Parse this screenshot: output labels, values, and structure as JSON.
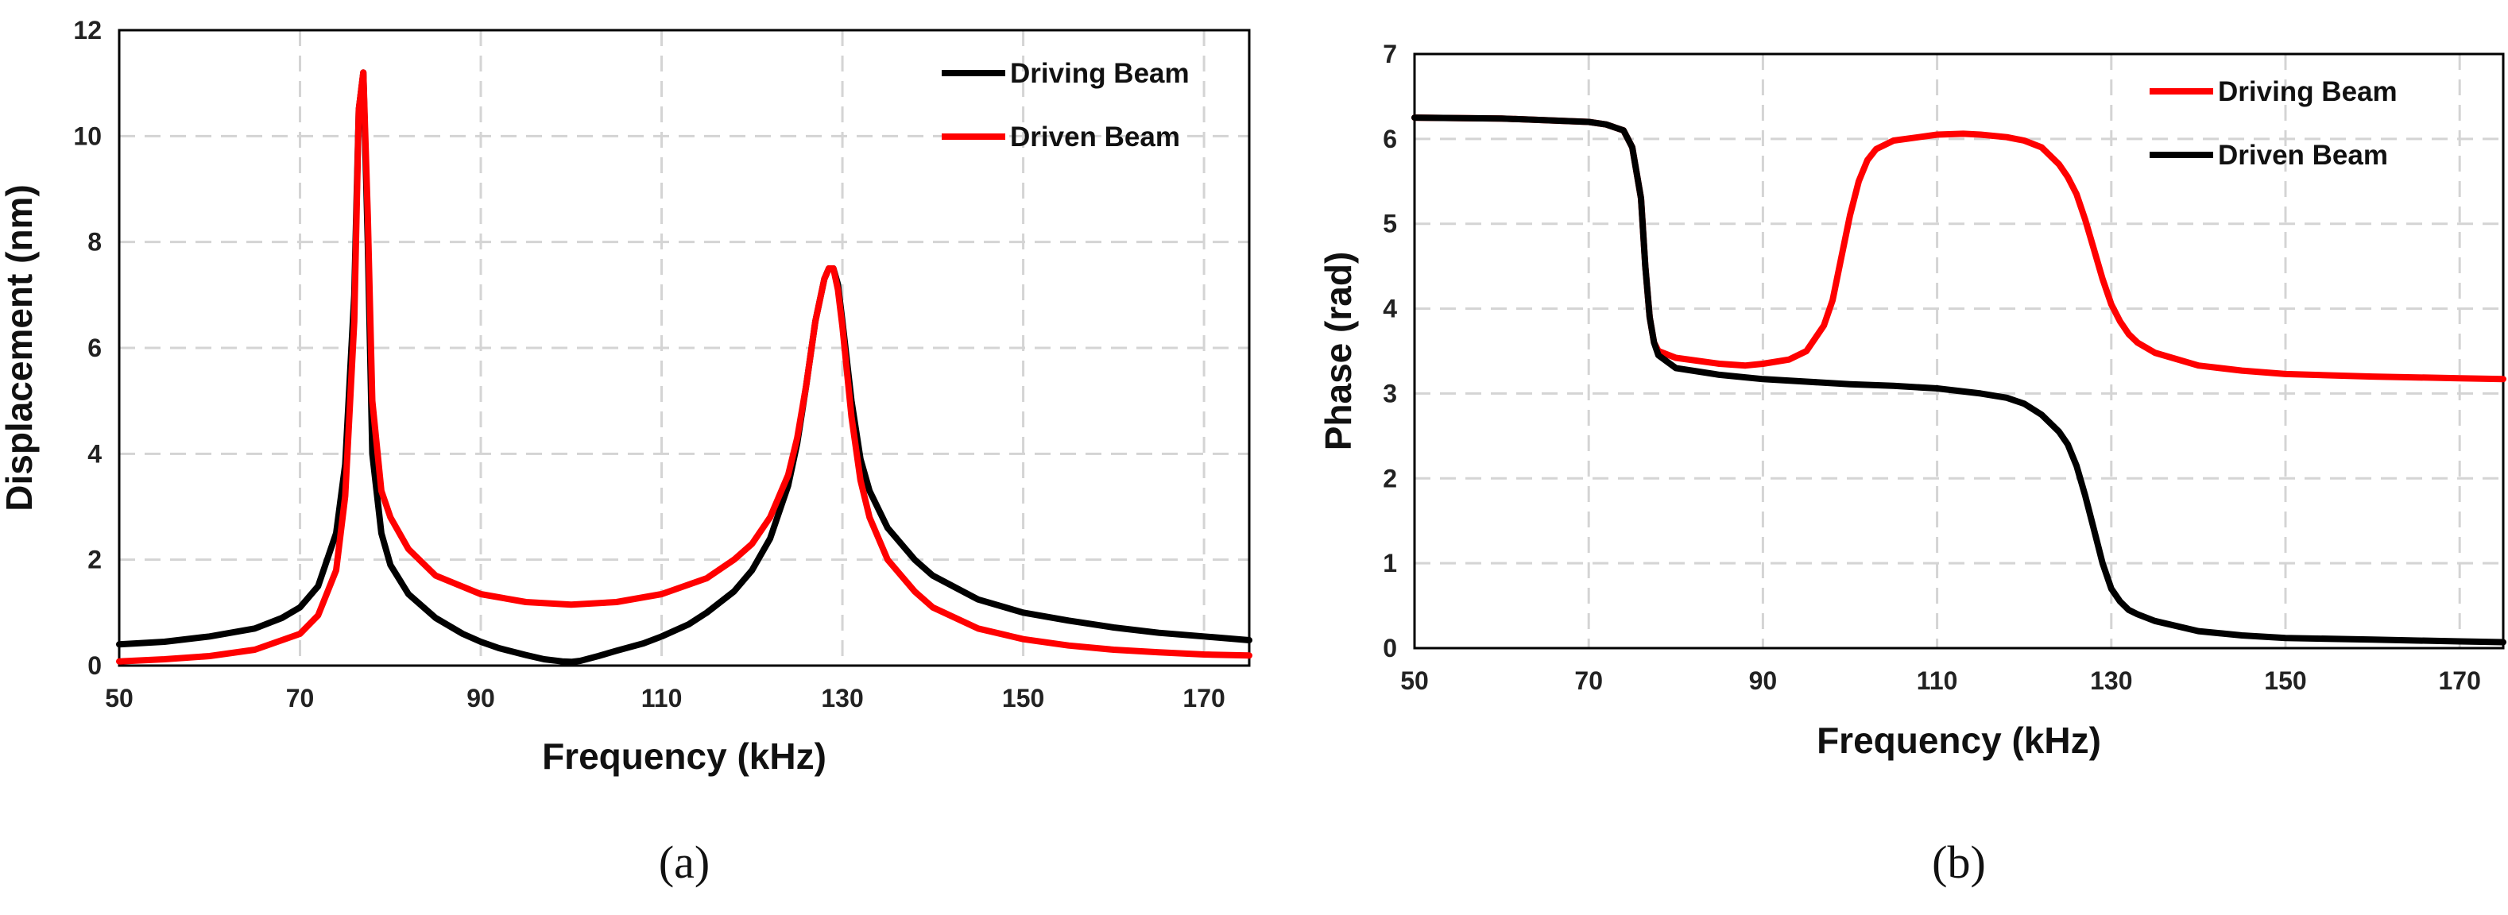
{
  "chart_data": [
    {
      "type": "line",
      "panel_label": "(a)",
      "title": "",
      "xlabel": "Frequency (kHz)",
      "ylabel": "Displacement (nm)",
      "xlim": [
        50,
        175
      ],
      "ylim": [
        0,
        12
      ],
      "xticks": [
        50,
        70,
        90,
        110,
        130,
        150,
        170
      ],
      "yticks": [
        0,
        2,
        4,
        6,
        8,
        10,
        12
      ],
      "grid": true,
      "legend_position": "top-right",
      "series": [
        {
          "name": "Driving Beam",
          "color": "#000000",
          "x": [
            50,
            55,
            60,
            65,
            68,
            70,
            72,
            74,
            75,
            76,
            76.5,
            77,
            77.5,
            78,
            79,
            80,
            82,
            85,
            88,
            90,
            92,
            95,
            97,
            99,
            100,
            101,
            103,
            105,
            108,
            110,
            113,
            115,
            118,
            120,
            122,
            124,
            125,
            126,
            127,
            128,
            128.5,
            129,
            129.5,
            130,
            131,
            132,
            133,
            135,
            138,
            140,
            145,
            150,
            155,
            160,
            165,
            170,
            175
          ],
          "y": [
            0.4,
            0.45,
            0.55,
            0.7,
            0.9,
            1.1,
            1.5,
            2.5,
            3.8,
            7.0,
            10.5,
            11.2,
            8.0,
            4.0,
            2.5,
            1.9,
            1.35,
            0.9,
            0.6,
            0.45,
            0.33,
            0.2,
            0.12,
            0.08,
            0.07,
            0.09,
            0.18,
            0.28,
            0.42,
            0.55,
            0.78,
            1.0,
            1.4,
            1.8,
            2.4,
            3.4,
            4.2,
            5.3,
            6.5,
            7.3,
            7.5,
            7.5,
            7.2,
            6.5,
            5.0,
            3.9,
            3.3,
            2.6,
            2.0,
            1.7,
            1.25,
            1.0,
            0.85,
            0.72,
            0.62,
            0.55,
            0.48
          ]
        },
        {
          "name": "Driven Beam",
          "color": "#ff0000",
          "x": [
            50,
            55,
            60,
            65,
            70,
            72,
            74,
            75,
            76,
            76.5,
            77,
            77.5,
            78,
            79,
            80,
            82,
            85,
            90,
            95,
            100,
            105,
            110,
            115,
            118,
            120,
            122,
            124,
            125,
            126,
            127,
            128,
            128.5,
            129,
            129.5,
            130,
            131,
            132,
            133,
            135,
            138,
            140,
            145,
            150,
            155,
            160,
            165,
            170,
            175
          ],
          "y": [
            0.08,
            0.12,
            0.18,
            0.3,
            0.6,
            0.95,
            1.8,
            3.2,
            6.5,
            10.5,
            11.2,
            8.5,
            5.0,
            3.3,
            2.8,
            2.2,
            1.7,
            1.35,
            1.2,
            1.15,
            1.2,
            1.35,
            1.65,
            2.0,
            2.3,
            2.8,
            3.6,
            4.3,
            5.3,
            6.5,
            7.3,
            7.5,
            7.5,
            7.1,
            6.4,
            4.7,
            3.5,
            2.8,
            2.0,
            1.4,
            1.1,
            0.7,
            0.5,
            0.38,
            0.3,
            0.25,
            0.21,
            0.19
          ]
        }
      ]
    },
    {
      "type": "line",
      "panel_label": "(b)",
      "title": "",
      "xlabel": "Frequency (kHz)",
      "ylabel": "Phase (rad)",
      "xlim": [
        50,
        175
      ],
      "ylim": [
        0,
        7
      ],
      "xticks": [
        50,
        70,
        90,
        110,
        130,
        150,
        170
      ],
      "yticks": [
        0,
        1,
        2,
        3,
        4,
        5,
        6,
        7
      ],
      "grid": true,
      "legend_position": "top-right",
      "series": [
        {
          "name": "Driving Beam",
          "color": "#ff0000",
          "x": [
            50,
            60,
            70,
            72,
            74,
            75,
            76,
            76.5,
            77,
            77.5,
            78,
            80,
            85,
            88,
            90,
            93,
            95,
            97,
            98,
            99,
            100,
            101,
            102,
            103,
            105,
            110,
            113,
            115,
            118,
            120,
            122,
            124,
            125,
            126,
            127,
            128,
            129,
            130,
            131,
            132,
            133,
            135,
            140,
            145,
            150,
            160,
            170,
            175
          ],
          "y": [
            6.25,
            6.24,
            6.2,
            6.17,
            6.1,
            5.9,
            5.3,
            4.5,
            3.9,
            3.6,
            3.5,
            3.42,
            3.35,
            3.33,
            3.35,
            3.4,
            3.5,
            3.8,
            4.1,
            4.6,
            5.1,
            5.5,
            5.75,
            5.88,
            5.98,
            6.05,
            6.06,
            6.05,
            6.02,
            5.98,
            5.9,
            5.7,
            5.55,
            5.35,
            5.05,
            4.7,
            4.35,
            4.05,
            3.85,
            3.7,
            3.6,
            3.48,
            3.33,
            3.27,
            3.23,
            3.2,
            3.18,
            3.17
          ]
        },
        {
          "name": "Driven Beam",
          "color": "#000000",
          "x": [
            50,
            60,
            70,
            72,
            74,
            75,
            76,
            76.5,
            77,
            77.5,
            78,
            80,
            85,
            90,
            95,
            100,
            105,
            110,
            115,
            118,
            120,
            122,
            124,
            125,
            126,
            127,
            128,
            129,
            130,
            131,
            132,
            133,
            135,
            140,
            145,
            150,
            160,
            170,
            175
          ],
          "y": [
            6.25,
            6.24,
            6.2,
            6.17,
            6.1,
            5.9,
            5.3,
            4.5,
            3.9,
            3.6,
            3.45,
            3.3,
            3.22,
            3.17,
            3.14,
            3.11,
            3.09,
            3.06,
            3.0,
            2.95,
            2.88,
            2.75,
            2.55,
            2.4,
            2.15,
            1.8,
            1.4,
            1.0,
            0.7,
            0.55,
            0.45,
            0.4,
            0.32,
            0.2,
            0.15,
            0.12,
            0.1,
            0.08,
            0.07
          ]
        }
      ]
    }
  ]
}
